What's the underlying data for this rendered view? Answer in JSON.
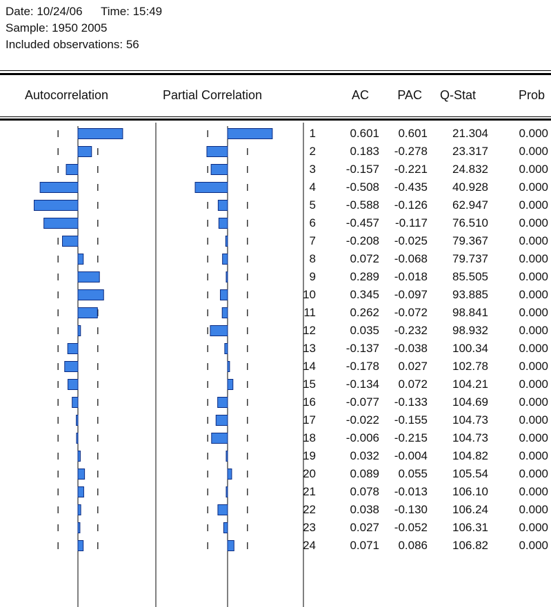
{
  "header": {
    "date_label": "Date: 10/24/06",
    "time_label": "Time: 15:49",
    "sample_label": "Sample: 1950 2005",
    "obs_label": "Included observations: 56"
  },
  "columns": {
    "autocorrelation": "Autocorrelation",
    "partial_correlation": "Partial Correlation",
    "ac": "AC",
    "pac": "PAC",
    "qstat": "Q-Stat",
    "prob": "Prob"
  },
  "colors": {
    "bar_fill": "#3c82e6",
    "bar_stroke": "#0a2a80"
  },
  "chart_data": {
    "type": "bar",
    "orientation": "horizontal",
    "x": [
      1,
      2,
      3,
      4,
      5,
      6,
      7,
      8,
      9,
      10,
      11,
      12,
      13,
      14,
      15,
      16,
      17,
      18,
      19,
      20,
      21,
      22,
      23,
      24
    ],
    "ac": [
      "0.601",
      "0.183",
      "-0.157",
      "-0.508",
      "-0.588",
      "-0.457",
      "-0.208",
      "0.072",
      "0.289",
      "0.345",
      "0.262",
      "0.035",
      "-0.137",
      "-0.178",
      "-0.134",
      "-0.077",
      "-0.022",
      "-0.006",
      "0.032",
      "0.089",
      "0.078",
      "0.038",
      "0.027",
      "0.071"
    ],
    "pac": [
      "0.601",
      "-0.278",
      "-0.221",
      "-0.435",
      "-0.126",
      "-0.117",
      "-0.025",
      "-0.068",
      "-0.018",
      "-0.097",
      "-0.072",
      "-0.232",
      "-0.038",
      "0.027",
      "0.072",
      "-0.133",
      "-0.155",
      "-0.215",
      "-0.004",
      "0.055",
      "-0.013",
      "-0.130",
      "-0.052",
      "0.086"
    ],
    "qstat": [
      "21.304",
      "23.317",
      "24.832",
      "40.928",
      "62.947",
      "76.510",
      "79.367",
      "79.737",
      "85.505",
      "93.885",
      "98.841",
      "98.932",
      "100.34",
      "102.78",
      "104.21",
      "104.69",
      "104.73",
      "104.73",
      "104.82",
      "105.54",
      "106.10",
      "106.24",
      "106.31",
      "106.82"
    ],
    "prob": [
      "0.000",
      "0.000",
      "0.000",
      "0.000",
      "0.000",
      "0.000",
      "0.000",
      "0.000",
      "0.000",
      "0.000",
      "0.000",
      "0.000",
      "0.000",
      "0.000",
      "0.000",
      "0.000",
      "0.000",
      "0.000",
      "0.000",
      "0.000",
      "0.000",
      "0.000",
      "0.000",
      "0.000"
    ],
    "confidence_bound": 0.267
  }
}
